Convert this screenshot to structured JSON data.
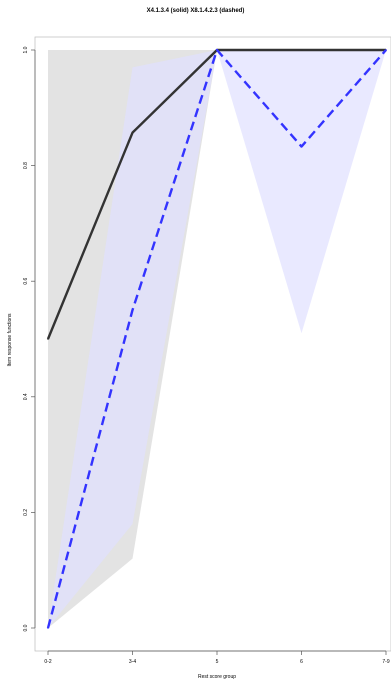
{
  "chart_data": {
    "type": "line",
    "title": "X4.1.3.4 (solid) X8.1.4.2.3 (dashed)",
    "xlabel": "Rest score group",
    "ylabel": "Item response functions",
    "x_ticks": [
      "0-2",
      "3-4",
      "5",
      "6",
      "7-9"
    ],
    "y_ticks": [
      "0.0",
      "0.2",
      "0.4",
      "0.6",
      "0.8",
      "1.0"
    ],
    "ylim": [
      0,
      1
    ],
    "series": [
      {
        "style": "solid",
        "color": "#333333",
        "values": [
          0.5,
          0.857,
          1.0,
          1.0,
          1.0
        ],
        "band_color": "#d9d9d9",
        "ci_lower": [
          0.0,
          0.12,
          1.0,
          1.0,
          1.0
        ],
        "ci_upper": [
          1.0,
          1.0,
          1.0,
          1.0,
          1.0
        ]
      },
      {
        "style": "dashed",
        "color": "#3333ff",
        "values": [
          0.0,
          0.55,
          1.0,
          0.833,
          1.0
        ],
        "band_color": "#e0e0ff",
        "ci_lower": [
          0.0,
          0.18,
          1.0,
          0.51,
          1.0
        ],
        "ci_upper": [
          0.0,
          0.97,
          1.0,
          1.0,
          1.0
        ]
      }
    ]
  }
}
